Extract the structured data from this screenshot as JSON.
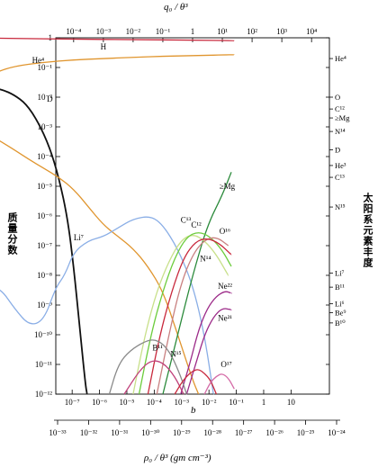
{
  "chart_data": {
    "type": "line",
    "y_label_left": "质量分数",
    "y_label_right": "太阳系元素丰度",
    "x_label_top": "q₀ / θ³",
    "x_label_bottom": "ρ₀ / θ³ (gm cm⁻³)",
    "xlim_top": [
      0.0001,
      10000.0
    ],
    "xlim_bottom": [
      1e-33,
      1e-24
    ],
    "axis_scale": "log",
    "ylim": [
      1e-12,
      1
    ],
    "top_ticks": [
      "10⁻⁴",
      "10⁻³",
      "10⁻²",
      "10⁻¹",
      "1",
      "10¹",
      "10²",
      "10³",
      "10⁴"
    ],
    "bottom_ticks_upper": [
      "10⁻⁷",
      "10⁻⁶",
      "10⁻⁵",
      "10⁻⁴",
      "10⁻³",
      "10⁻²",
      "10⁻¹",
      "1",
      "10"
    ],
    "bottom_ticks_lower": [
      "10⁻³³",
      "10⁻³²",
      "10⁻³¹",
      "10⁻³⁰",
      "10⁻²⁹",
      "10⁻²⁸",
      "10⁻²⁷",
      "10⁻²⁶",
      "10⁻²⁵",
      "10⁻²⁴"
    ],
    "y_ticks": [
      "1",
      "10⁻¹",
      "10⁻²",
      "10⁻³",
      "10⁻⁴",
      "10⁻⁵",
      "10⁻⁶",
      "10⁻⁷",
      "10⁻⁸",
      "10⁻⁹",
      "10⁻¹⁰",
      "10⁻¹¹",
      "10⁻¹²"
    ],
    "b_label": "b",
    "right_labels": [
      {
        "text": "He⁴",
        "y": 0.2
      },
      {
        "text": "O",
        "y": 0.01
      },
      {
        "text": "C¹²",
        "y": 0.004
      },
      {
        "text": "≥Mg",
        "y": 0.002
      },
      {
        "text": "N¹⁴",
        "y": 0.0007
      },
      {
        "text": "D",
        "y": 0.00017
      },
      {
        "text": "He³",
        "y": 5e-05
      },
      {
        "text": "C¹³",
        "y": 2e-05
      },
      {
        "text": "N¹⁵",
        "y": 2e-06
      },
      {
        "text": "Li⁷",
        "y": 1.2e-08
      },
      {
        "text": "B¹¹",
        "y": 4e-09
      },
      {
        "text": "Li⁶",
        "y": 1.1e-09
      },
      {
        "text": "Be⁹",
        "y": 5.5e-10
      },
      {
        "text": "B¹⁰",
        "y": 2.5e-10
      }
    ],
    "series": [
      {
        "name": "H",
        "color": "#c8283c",
        "label_at": [
          -3.1,
          0.4
        ],
        "points": [
          [
            -7.6,
            1
          ],
          [
            -6,
            0.95
          ],
          [
            -4,
            0.9
          ],
          [
            -2,
            0.87
          ],
          [
            0,
            0.83
          ],
          [
            1.4,
            0.8
          ]
        ]
      },
      {
        "name": "He⁴",
        "color": "#e0952e",
        "label_at": [
          -5.4,
          0.14
        ],
        "points": [
          [
            -7.6,
            0.008
          ],
          [
            -7.4,
            0.02
          ],
          [
            -7.1,
            0.04
          ],
          [
            -6.6,
            0.07
          ],
          [
            -6,
            0.11
          ],
          [
            -5,
            0.15
          ],
          [
            -4,
            0.18
          ],
          [
            -3,
            0.2
          ],
          [
            -2,
            0.22
          ],
          [
            -1,
            0.24
          ],
          [
            0,
            0.25
          ],
          [
            1.4,
            0.27
          ]
        ]
      },
      {
        "name": "D",
        "color": "#111111",
        "label_at": [
          -4.9,
          0.007
        ],
        "points": [
          [
            -7.6,
            0.005
          ],
          [
            -7.3,
            0.013
          ],
          [
            -7.0,
            0.019
          ],
          [
            -6.7,
            0.02
          ],
          [
            -6.4,
            0.018
          ],
          [
            -6,
            0.012
          ],
          [
            -5.6,
            0.006
          ],
          [
            -5.2,
            0.0015
          ],
          [
            -4.8,
            0.0002
          ],
          [
            -4.5,
            2e-05
          ],
          [
            -4.2,
            8e-07
          ],
          [
            -4.0,
            2e-08
          ],
          [
            -3.8,
            2e-10
          ],
          [
            -3.6,
            2e-12
          ],
          [
            -3.55,
            1e-12
          ]
        ]
      },
      {
        "name": "He³",
        "color": "#e0952e",
        "label_at": [
          -6.9,
          0.0009
        ],
        "points": [
          [
            -7.6,
            0.0002
          ],
          [
            -7.4,
            0.0003
          ],
          [
            -7.0,
            0.0004
          ],
          [
            -6.7,
            0.00045
          ],
          [
            -6.4,
            0.0003
          ],
          [
            -6,
            0.00017
          ],
          [
            -5.5,
            8e-05
          ],
          [
            -5,
            4e-05
          ],
          [
            -4.5,
            2e-05
          ],
          [
            -4,
            8e-06
          ],
          [
            -3.5,
            2e-06
          ],
          [
            -3,
            5e-07
          ],
          [
            -2.5,
            2e-07
          ],
          [
            -2,
            8e-08
          ],
          [
            -1.5,
            2e-08
          ],
          [
            -1,
            3e-09
          ],
          [
            -0.5,
            1e-10
          ],
          [
            0,
            3e-12
          ],
          [
            0.2,
            1e-12
          ]
        ]
      },
      {
        "name": "Li⁷",
        "color": "#8aaee6",
        "label_at": [
          -4.0,
          1.5e-07
        ],
        "points": [
          [
            -7.6,
            1e-11
          ],
          [
            -7.3,
            1e-10
          ],
          [
            -7.0,
            1.5e-09
          ],
          [
            -6.7,
            4e-09
          ],
          [
            -6.4,
            3e-09
          ],
          [
            -6.0,
            8e-10
          ],
          [
            -5.5,
            2e-10
          ],
          [
            -5.0,
            3e-10
          ],
          [
            -4.6,
            4e-09
          ],
          [
            -4.3,
            1e-08
          ],
          [
            -4.0,
            6e-08
          ],
          [
            -3.5,
            1.5e-07
          ],
          [
            -3,
            2e-07
          ],
          [
            -2.5,
            4e-07
          ],
          [
            -2,
            8e-07
          ],
          [
            -1.4,
            1e-06
          ],
          [
            -1,
            5e-07
          ],
          [
            -0.5,
            8e-08
          ],
          [
            0,
            5e-09
          ],
          [
            0.4,
            1e-10
          ],
          [
            0.7,
            1e-12
          ]
        ]
      },
      {
        "name": "≥Mg",
        "color": "#2a8a3a",
        "label_at": [
          0.9,
          8e-06
        ],
        "points": [
          [
            -1.0,
            1e-12
          ],
          [
            -0.5,
            1e-10
          ],
          [
            0,
            1e-08
          ],
          [
            0.5,
            5e-07
          ],
          [
            1.0,
            5e-06
          ],
          [
            1.3,
            3e-05
          ]
        ]
      },
      {
        "name": "C¹³",
        "color": "#c8e08a",
        "label_at": [
          -0.4,
          6e-07
        ],
        "points": [
          [
            -2.0,
            1e-12
          ],
          [
            -1.6,
            1e-10
          ],
          [
            -1.2,
            3e-09
          ],
          [
            -0.8,
            3e-08
          ],
          [
            -0.4,
            1.5e-07
          ],
          [
            0,
            2.5e-07
          ],
          [
            0.4,
            1.5e-07
          ],
          [
            0.8,
            5e-08
          ],
          [
            1.2,
            1e-08
          ]
        ]
      },
      {
        "name": "C¹²",
        "color": "#6ccc3c",
        "label_at": [
          -0.05,
          4e-07
        ],
        "points": [
          [
            -1.8,
            1e-12
          ],
          [
            -1.4,
            1e-10
          ],
          [
            -1.0,
            3e-09
          ],
          [
            -0.6,
            4e-08
          ],
          [
            -0.2,
            2e-07
          ],
          [
            0.2,
            3e-07
          ],
          [
            0.6,
            2e-07
          ],
          [
            1.0,
            7e-08
          ],
          [
            1.3,
            2e-08
          ]
        ]
      },
      {
        "name": "O¹⁶",
        "color": "#c98080",
        "label_at": [
          0.9,
          2.5e-07
        ],
        "points": [
          [
            -1.2,
            1e-12
          ],
          [
            -0.8,
            1e-10
          ],
          [
            -0.4,
            5e-09
          ],
          [
            0,
            5e-08
          ],
          [
            0.4,
            1.6e-07
          ],
          [
            0.8,
            2e-07
          ],
          [
            1.2,
            1e-07
          ]
        ]
      },
      {
        "name": "N¹⁴",
        "color": "#c8283c",
        "label_at": [
          0.25,
          3e-08
        ],
        "points": [
          [
            -1.5,
            1e-12
          ],
          [
            -1.1,
            1e-10
          ],
          [
            -0.7,
            3e-09
          ],
          [
            -0.3,
            4e-08
          ],
          [
            0.1,
            1.4e-07
          ],
          [
            0.5,
            1.8e-07
          ],
          [
            0.9,
            1.2e-07
          ],
          [
            1.3,
            5e-08
          ]
        ]
      },
      {
        "name": "Ne²²",
        "color": "#9c2a88",
        "label_at": [
          0.85,
          3.5e-09
        ],
        "points": [
          [
            -0.4,
            1e-12
          ],
          [
            -0.1,
            1e-11
          ],
          [
            0.2,
            1.5e-10
          ],
          [
            0.5,
            8e-10
          ],
          [
            0.8,
            2e-09
          ],
          [
            1.1,
            3e-09
          ],
          [
            1.3,
            2.5e-09
          ]
        ]
      },
      {
        "name": "Ne²¹",
        "color": "#9c2a88",
        "label_at": [
          0.85,
          3e-10
        ],
        "points": [
          [
            -0.2,
            1e-12
          ],
          [
            0.1,
            1e-11
          ],
          [
            0.4,
            1e-10
          ],
          [
            0.7,
            4e-10
          ],
          [
            1.0,
            8e-10
          ],
          [
            1.3,
            7e-10
          ]
        ]
      },
      {
        "name": "B¹¹",
        "color": "#888888",
        "label_at": [
          -1.35,
          3e-11
        ],
        "points": [
          [
            -2.8,
            1e-12
          ],
          [
            -2.5,
            1e-11
          ],
          [
            -2.1,
            3e-11
          ],
          [
            -1.6,
            6e-11
          ],
          [
            -1.3,
            7e-11
          ],
          [
            -1.0,
            5e-11
          ],
          [
            -0.7,
            2e-11
          ],
          [
            -0.4,
            4e-12
          ],
          [
            -0.2,
            1e-12
          ]
        ]
      },
      {
        "name": "",
        "color": "#c0407a",
        "points": [
          [
            -2.3,
            1e-12
          ],
          [
            -1.8,
            6e-12
          ],
          [
            -1.4,
            1.4e-11
          ],
          [
            -1.0,
            1.2e-11
          ],
          [
            -0.6,
            4e-12
          ],
          [
            -0.3,
            1e-12
          ]
        ]
      },
      {
        "name": "N¹⁵",
        "color": "#c8283c",
        "label_at": [
          -0.75,
          1.8e-11
        ],
        "points": [
          [
            -0.6,
            1e-12
          ],
          [
            -0.4,
            2.2e-12
          ],
          [
            -0.2,
            4e-12
          ],
          [
            0,
            6e-12
          ],
          [
            0.2,
            7e-12
          ],
          [
            0.4,
            5e-12
          ],
          [
            0.6,
            3e-12
          ],
          [
            0.8,
            1e-12
          ]
        ]
      },
      {
        "name": "O¹⁷",
        "color": "#d46aa6",
        "label_at": [
          0.95,
          8e-12
        ],
        "points": [
          [
            0.4,
            1e-12
          ],
          [
            0.6,
            2.5e-12
          ],
          [
            0.8,
            4e-12
          ],
          [
            1.0,
            5e-12
          ],
          [
            1.2,
            3.5e-12
          ],
          [
            1.4,
            1.5e-12
          ]
        ]
      }
    ]
  }
}
